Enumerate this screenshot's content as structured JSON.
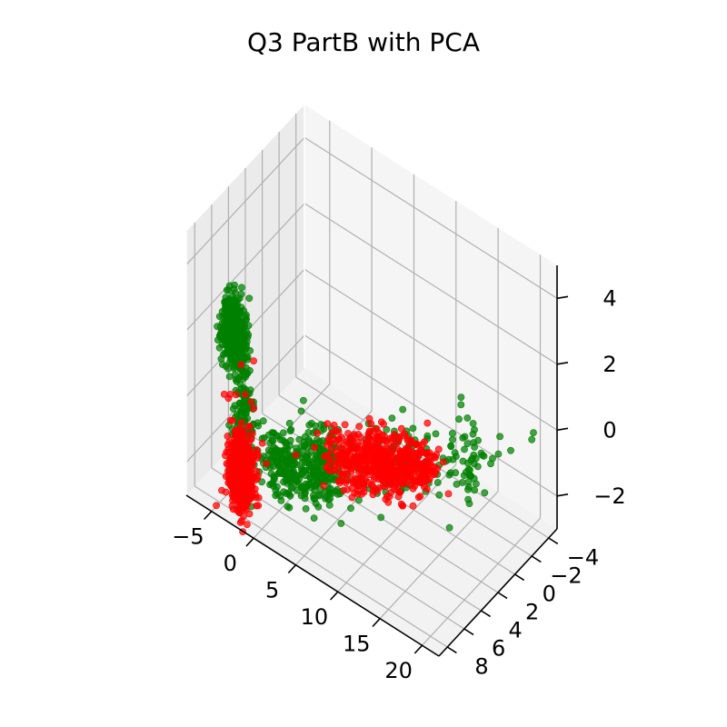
{
  "chart_data": {
    "type": "scatter3d",
    "title": "Q3 PartB with PCA",
    "xlabel": "",
    "ylabel": "",
    "zlabel": "",
    "xlim": [
      -8,
      22
    ],
    "ylim": [
      -5,
      9
    ],
    "zlim": [
      -3,
      5
    ],
    "xticks": [
      -5,
      0,
      5,
      10,
      15,
      20
    ],
    "xtick_labels": [
      "−5",
      "0",
      "5",
      "10",
      "15",
      "20"
    ],
    "yticks": [
      -4,
      -2,
      0,
      2,
      4,
      6,
      8
    ],
    "ytick_labels": [
      "−4",
      "−2",
      "0",
      "2",
      "4",
      "6",
      "8"
    ],
    "zticks": [
      -2,
      0,
      2,
      4
    ],
    "ztick_labels": [
      "−2",
      "0",
      "2",
      "4"
    ],
    "grid": true,
    "colors": {
      "class_a": "#008000",
      "class_b": "#ff0000",
      "pane": "#f2f2f2",
      "grid": "#b0b0b0"
    },
    "series": [
      {
        "color": "#008000",
        "clusters": [
          {
            "center": [
              -3.5,
              8.0,
              2.4
            ],
            "spread": [
              0.6,
              0.3,
              0.5
            ],
            "count": 450
          },
          {
            "center": [
              -3.0,
              7.2,
              -0.2
            ],
            "spread": [
              0.6,
              0.3,
              1.1
            ],
            "count": 160
          },
          {
            "center": [
              0.5,
              5.8,
              -1.6
            ],
            "spread": [
              1.3,
              0.6,
              0.5
            ],
            "count": 170
          },
          {
            "center": [
              3.5,
              4.8,
              -1.4
            ],
            "spread": [
              1.4,
              0.6,
              0.5
            ],
            "count": 200
          },
          {
            "center": [
              10.5,
              2.2,
              -1.0
            ],
            "spread": [
              2.5,
              1.0,
              0.5
            ],
            "count": 100
          },
          {
            "center": [
              16.0,
              -0.5,
              -0.5
            ],
            "spread": [
              1.4,
              0.8,
              0.5
            ],
            "count": 60
          }
        ],
        "points": [
          [
            21.0,
            -3.0,
            0.1
          ],
          [
            21.1,
            -3.1,
            0.3
          ],
          [
            19.5,
            -2.0,
            -0.2
          ]
        ]
      },
      {
        "color": "#ff0000",
        "clusters": [
          {
            "center": [
              -3.5,
              7.0,
              -2.1
            ],
            "spread": [
              0.7,
              0.4,
              0.55
            ],
            "count": 520
          },
          {
            "center": [
              6.5,
              3.5,
              -1.1
            ],
            "spread": [
              1.6,
              0.8,
              0.4
            ],
            "count": 200
          },
          {
            "center": [
              9.5,
              2.5,
              -0.9
            ],
            "spread": [
              1.5,
              0.7,
              0.4
            ],
            "count": 220
          },
          {
            "center": [
              12.5,
              1.8,
              -0.7
            ],
            "spread": [
              1.0,
              0.6,
              0.35
            ],
            "count": 110
          }
        ],
        "points": [
          [
            -2.0,
            8.5,
            1.8
          ],
          [
            0.5,
            9.5,
            2.6
          ],
          [
            -1.0,
            9.0,
            1.2
          ],
          [
            -0.5,
            8.8,
            1.0
          ],
          [
            -3.5,
            8.3,
            0.6
          ],
          [
            -2.5,
            7.8,
            -0.6
          ],
          [
            1.5,
            5.5,
            -1.2
          ],
          [
            -2.0,
            7.5,
            -3.0
          ],
          [
            -2.5,
            7.7,
            -3.1
          ],
          [
            -3.5,
            7.6,
            0.4
          ],
          [
            -4.5,
            7.5,
            0.1
          ],
          [
            -1.0,
            8.0,
            0.5
          ]
        ]
      }
    ]
  }
}
